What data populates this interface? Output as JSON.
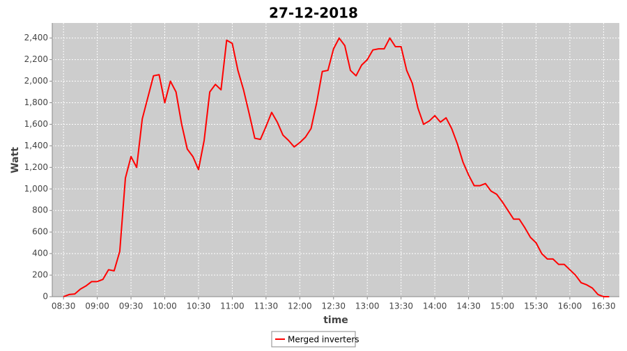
{
  "chart_data": {
    "type": "line",
    "title": "27-12-2018",
    "x_label": "time",
    "y_label": "Watt",
    "x": [
      "08:30",
      "08:35",
      "08:40",
      "08:45",
      "08:50",
      "08:55",
      "09:00",
      "09:05",
      "09:10",
      "09:15",
      "09:20",
      "09:25",
      "09:30",
      "09:35",
      "09:40",
      "09:45",
      "09:50",
      "09:55",
      "10:00",
      "10:05",
      "10:10",
      "10:15",
      "10:20",
      "10:25",
      "10:30",
      "10:35",
      "10:40",
      "10:45",
      "10:50",
      "10:55",
      "11:00",
      "11:05",
      "11:10",
      "11:15",
      "11:20",
      "11:25",
      "11:30",
      "11:35",
      "11:40",
      "11:45",
      "11:50",
      "11:55",
      "12:00",
      "12:05",
      "12:10",
      "12:15",
      "12:20",
      "12:25",
      "12:30",
      "12:35",
      "12:40",
      "12:45",
      "12:50",
      "12:55",
      "13:00",
      "13:05",
      "13:10",
      "13:15",
      "13:20",
      "13:25",
      "13:30",
      "13:35",
      "13:40",
      "13:45",
      "13:50",
      "13:55",
      "14:00",
      "14:05",
      "14:10",
      "14:15",
      "14:20",
      "14:25",
      "14:30",
      "14:35",
      "14:40",
      "14:45",
      "14:50",
      "14:55",
      "15:00",
      "15:05",
      "15:10",
      "15:15",
      "15:20",
      "15:25",
      "15:30",
      "15:35",
      "15:40",
      "15:45",
      "15:50",
      "15:55",
      "16:00",
      "16:05",
      "16:10",
      "16:15",
      "16:20",
      "16:25",
      "16:30",
      "16:35"
    ],
    "series": [
      {
        "name": "Merged inverters",
        "color": "#ff0000",
        "values": [
          0,
          20,
          25,
          70,
          100,
          140,
          140,
          160,
          250,
          240,
          420,
          1100,
          1300,
          1200,
          1650,
          1850,
          2050,
          2060,
          1800,
          2000,
          1900,
          1600,
          1370,
          1300,
          1180,
          1450,
          1900,
          1970,
          1920,
          2380,
          2350,
          2100,
          1920,
          1700,
          1470,
          1460,
          1580,
          1710,
          1620,
          1500,
          1450,
          1390,
          1430,
          1480,
          1560,
          1800,
          2090,
          2100,
          2300,
          2400,
          2330,
          2100,
          2050,
          2150,
          2200,
          2290,
          2300,
          2300,
          2400,
          2320,
          2320,
          2100,
          1980,
          1750,
          1600,
          1630,
          1680,
          1620,
          1660,
          1560,
          1420,
          1250,
          1130,
          1030,
          1030,
          1050,
          980,
          950,
          880,
          800,
          720,
          720,
          640,
          550,
          500,
          400,
          350,
          350,
          300,
          300,
          250,
          200,
          130,
          110,
          80,
          20,
          0,
          0
        ]
      }
    ],
    "xlim": [
      "08:20",
      "16:44"
    ],
    "xticks": [
      "08:30",
      "09:00",
      "09:30",
      "10:00",
      "10:30",
      "11:00",
      "11:30",
      "12:00",
      "12:30",
      "13:00",
      "13:30",
      "14:00",
      "14:30",
      "15:00",
      "15:30",
      "16:00",
      "16:30"
    ],
    "ylim": [
      0,
      2540
    ],
    "yticks": [
      0,
      200,
      400,
      600,
      800,
      {
        "value": 1000,
        "label": "1,000"
      },
      {
        "value": 1200,
        "label": "1,200"
      },
      {
        "value": 1400,
        "label": "1,400"
      },
      {
        "value": 1600,
        "label": "1,600"
      },
      {
        "value": 1800,
        "label": "1,800"
      },
      {
        "value": 2000,
        "label": "2,000"
      },
      {
        "value": 2200,
        "label": "2,200"
      },
      {
        "value": 2400,
        "label": "2,400"
      }
    ],
    "grid": true,
    "legend": "bottom"
  }
}
